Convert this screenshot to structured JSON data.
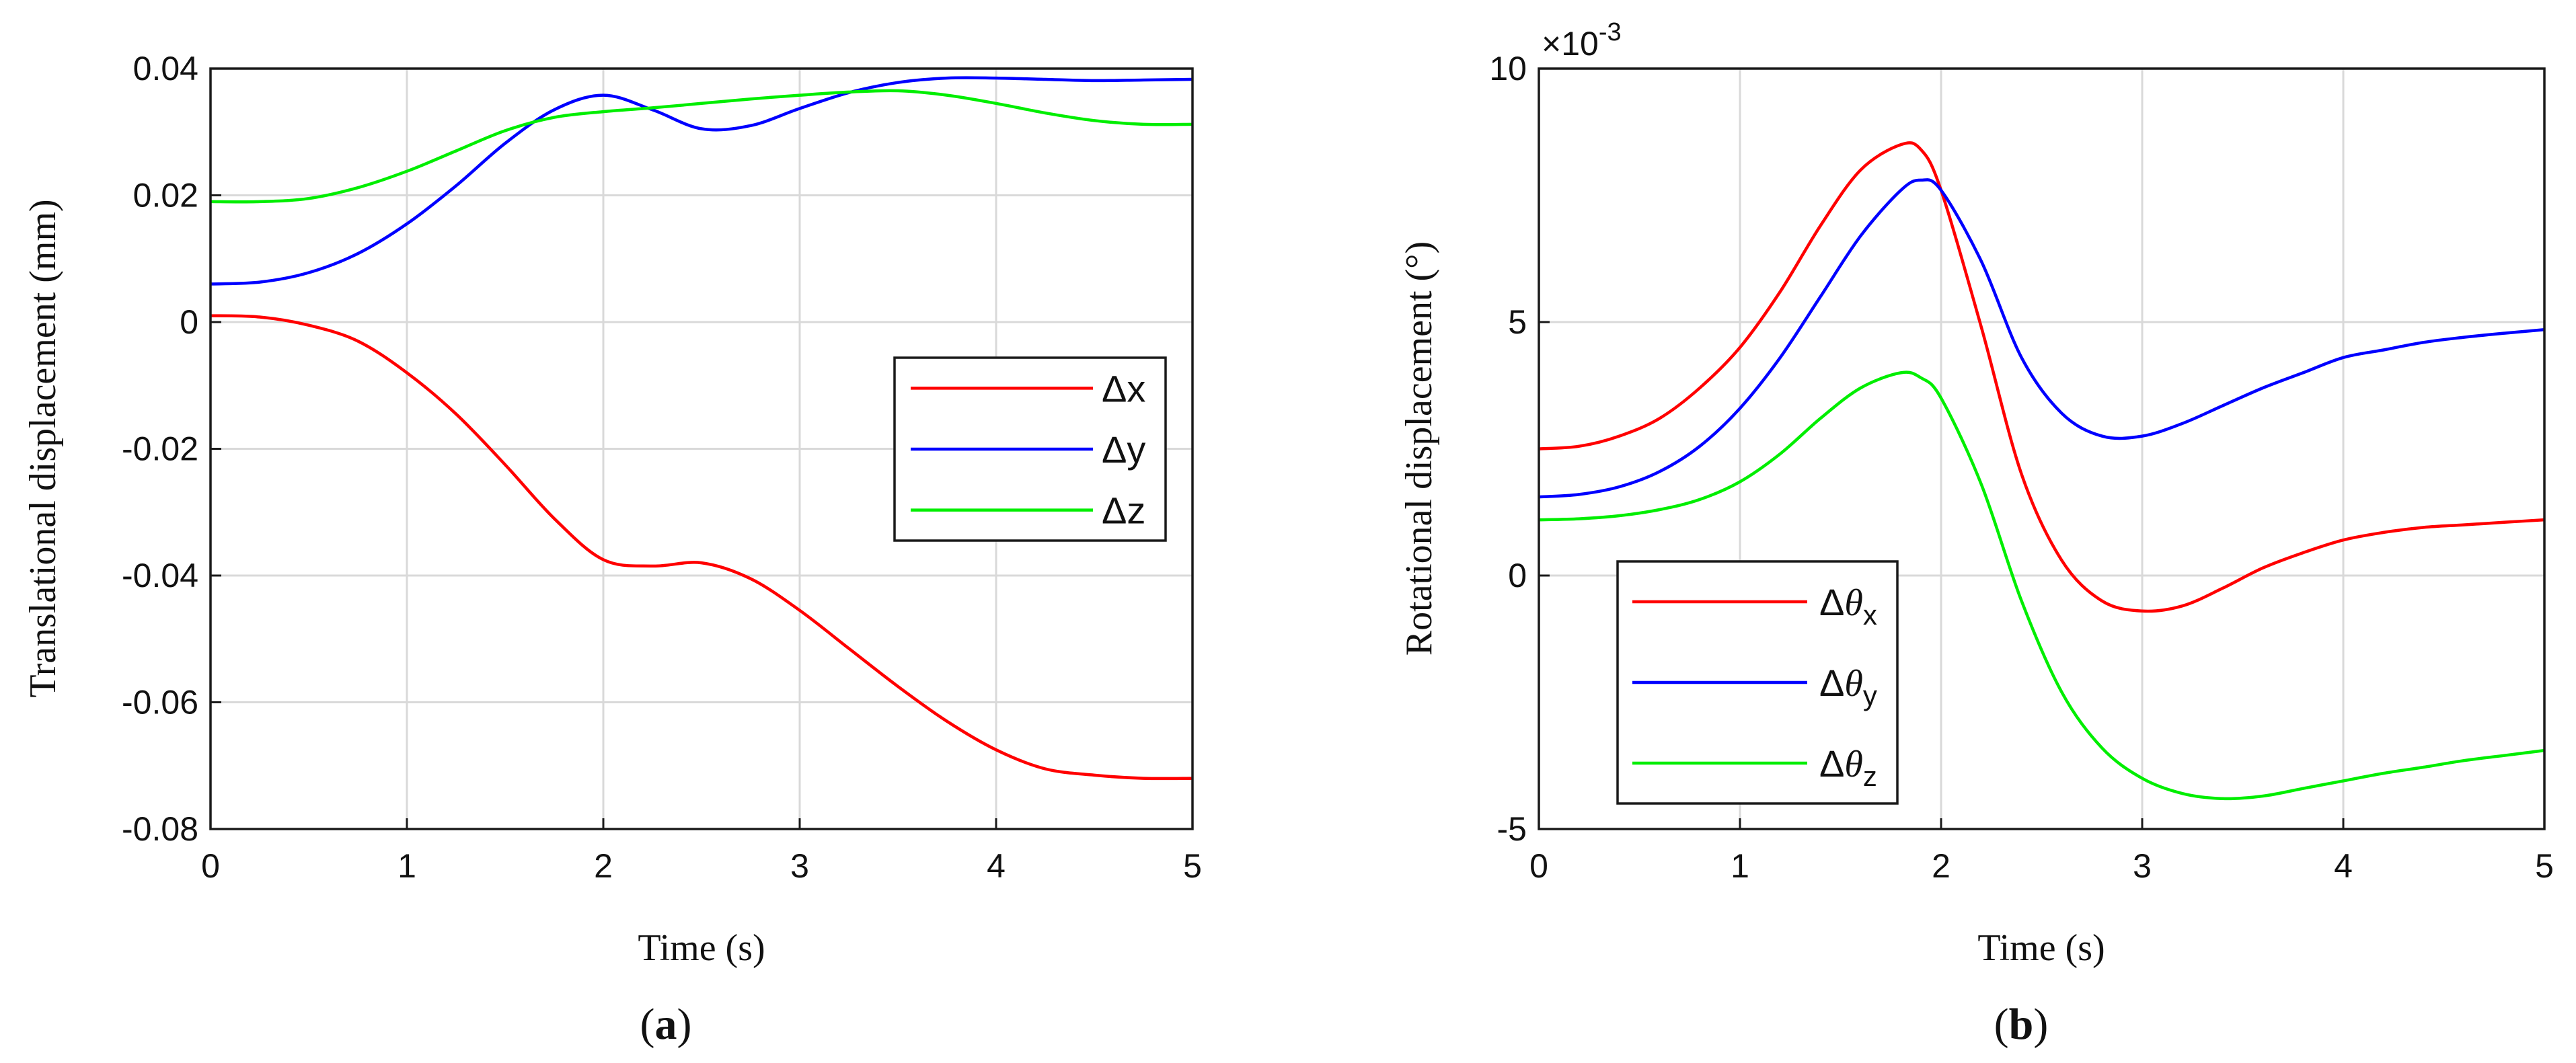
{
  "chart_data": [
    {
      "type": "line",
      "panel": "a",
      "caption_open": "(",
      "caption": "a",
      "caption_close": ")",
      "xlabel": "Time (s)",
      "ylabel": "Translational displacement  (mm)",
      "xlim": [
        0,
        5
      ],
      "ylim": [
        -0.08,
        0.04
      ],
      "xticks": [
        0,
        1,
        2,
        3,
        4,
        5
      ],
      "xtick_labels": [
        "0",
        "1",
        "2",
        "3",
        "4",
        "5"
      ],
      "yticks": [
        -0.08,
        -0.06,
        -0.04,
        -0.02,
        0,
        0.02,
        0.04
      ],
      "ytick_labels": [
        "-0.08",
        "-0.06",
        "-0.04",
        "-0.02",
        "0",
        "0.02",
        "0.04"
      ],
      "grid": true,
      "legend_position": "right-middle",
      "series": [
        {
          "name": "Δx",
          "label_main": "Δx",
          "color": "#ff0000",
          "x": [
            0,
            0.25,
            0.5,
            0.75,
            1,
            1.25,
            1.5,
            1.75,
            2,
            2.25,
            2.5,
            2.75,
            3,
            3.25,
            3.5,
            3.75,
            4,
            4.25,
            4.5,
            4.75,
            5
          ],
          "y": [
            0.001,
            0.0008,
            -0.0005,
            -0.003,
            -0.008,
            -0.0145,
            -0.0225,
            -0.031,
            -0.0375,
            -0.0385,
            -0.038,
            -0.0405,
            -0.0455,
            -0.0515,
            -0.0575,
            -0.063,
            -0.0675,
            -0.0705,
            -0.0715,
            -0.072,
            -0.072
          ]
        },
        {
          "name": "Δy",
          "label_main": "Δy",
          "color": "#0000ff",
          "x": [
            0,
            0.25,
            0.5,
            0.75,
            1,
            1.25,
            1.5,
            1.75,
            2,
            2.25,
            2.5,
            2.75,
            3,
            3.25,
            3.5,
            3.75,
            4,
            4.25,
            4.5,
            4.75,
            5
          ],
          "y": [
            0.006,
            0.0063,
            0.0078,
            0.0108,
            0.0155,
            0.0215,
            0.0282,
            0.0335,
            0.0358,
            0.0335,
            0.0305,
            0.031,
            0.0337,
            0.0362,
            0.0378,
            0.0385,
            0.0385,
            0.0383,
            0.0381,
            0.0382,
            0.0383
          ]
        },
        {
          "name": "Δz",
          "label_main": "Δz",
          "color": "#00ee00",
          "x": [
            0,
            0.25,
            0.5,
            0.75,
            1,
            1.25,
            1.5,
            1.75,
            2,
            2.25,
            2.5,
            2.75,
            3,
            3.25,
            3.5,
            3.75,
            4,
            4.25,
            4.5,
            4.75,
            5
          ],
          "y": [
            0.019,
            0.019,
            0.0195,
            0.0212,
            0.0238,
            0.027,
            0.0302,
            0.0323,
            0.0332,
            0.0338,
            0.0345,
            0.0352,
            0.0358,
            0.0363,
            0.0365,
            0.0358,
            0.0345,
            0.033,
            0.0318,
            0.0312,
            0.0312
          ]
        }
      ]
    },
    {
      "type": "line",
      "panel": "b",
      "caption_open": "(",
      "caption": "b",
      "caption_close": ")",
      "xlabel": "Time (s)",
      "ylabel": "Rotational displacement (°)",
      "exponent_label": "×10",
      "exponent_power": "-3",
      "xlim": [
        0,
        5
      ],
      "ylim": [
        -5,
        10
      ],
      "xticks": [
        0,
        1,
        2,
        3,
        4,
        5
      ],
      "xtick_labels": [
        "0",
        "1",
        "2",
        "3",
        "4",
        "5"
      ],
      "yticks": [
        -5,
        0,
        5,
        10
      ],
      "ytick_labels": [
        "-5",
        "0",
        "5",
        "10"
      ],
      "grid": true,
      "legend_position": "bottom-left",
      "series": [
        {
          "name": "Δθx",
          "label_main": "Δθ",
          "label_sub": "x",
          "color": "#ff0000",
          "x": [
            0,
            0.2,
            0.4,
            0.6,
            0.8,
            1,
            1.2,
            1.4,
            1.6,
            1.8,
            1.9,
            2,
            2.2,
            2.4,
            2.6,
            2.8,
            3,
            3.2,
            3.4,
            3.6,
            3.8,
            4,
            4.2,
            4.4,
            4.6,
            4.8,
            5
          ],
          "y": [
            2.5,
            2.55,
            2.75,
            3.1,
            3.7,
            4.5,
            5.6,
            6.9,
            8.0,
            8.5,
            8.4,
            7.6,
            4.9,
            2.0,
            0.3,
            -0.5,
            -0.7,
            -0.6,
            -0.25,
            0.15,
            0.45,
            0.7,
            0.85,
            0.95,
            1.0,
            1.05,
            1.1
          ]
        },
        {
          "name": "Δθy",
          "label_main": "Δθ",
          "label_sub": "y",
          "color": "#0000ff",
          "x": [
            0,
            0.2,
            0.4,
            0.6,
            0.8,
            1,
            1.2,
            1.4,
            1.6,
            1.8,
            1.9,
            2,
            2.2,
            2.4,
            2.6,
            2.8,
            3,
            3.2,
            3.4,
            3.6,
            3.8,
            4,
            4.2,
            4.4,
            4.6,
            4.8,
            5
          ],
          "y": [
            1.55,
            1.6,
            1.75,
            2.05,
            2.55,
            3.3,
            4.3,
            5.5,
            6.7,
            7.6,
            7.8,
            7.6,
            6.2,
            4.3,
            3.2,
            2.75,
            2.75,
            3.0,
            3.35,
            3.7,
            4.0,
            4.3,
            4.45,
            4.6,
            4.7,
            4.78,
            4.85
          ]
        },
        {
          "name": "Δθz",
          "label_main": "Δθ",
          "label_sub": "z",
          "color": "#00ee00",
          "x": [
            0,
            0.2,
            0.4,
            0.6,
            0.8,
            1,
            1.2,
            1.4,
            1.6,
            1.8,
            1.9,
            2,
            2.2,
            2.4,
            2.6,
            2.8,
            3,
            3.2,
            3.4,
            3.6,
            3.8,
            4,
            4.2,
            4.4,
            4.6,
            4.8,
            5
          ],
          "y": [
            1.1,
            1.12,
            1.18,
            1.3,
            1.5,
            1.85,
            2.4,
            3.1,
            3.7,
            4.0,
            3.9,
            3.5,
            1.8,
            -0.5,
            -2.3,
            -3.4,
            -4.0,
            -4.3,
            -4.4,
            -4.35,
            -4.2,
            -4.05,
            -3.9,
            -3.78,
            -3.65,
            -3.55,
            -3.45
          ]
        }
      ]
    }
  ]
}
